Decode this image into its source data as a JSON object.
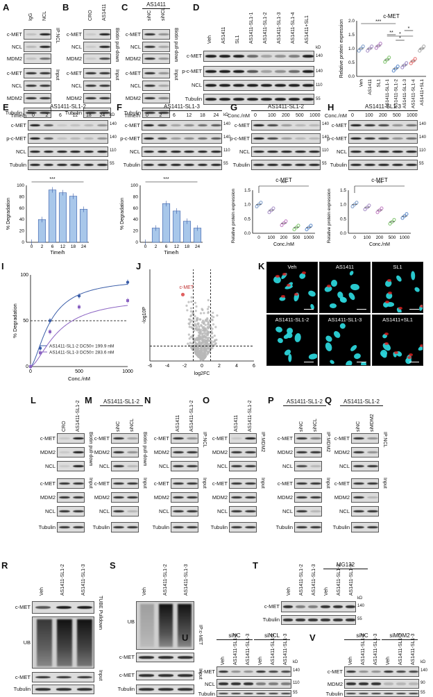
{
  "panels": {
    "A": {
      "letter": "A",
      "lanes": [
        "IgG",
        "NCL"
      ],
      "rows": [
        "c-MET",
        "NCL",
        "MDM2",
        "c-MET",
        "NCL",
        "MDM2",
        "Tubulin"
      ],
      "side": [
        "IP:NCL",
        "Input"
      ]
    },
    "B": {
      "letter": "B",
      "lanes": [
        "CRO",
        "AS1411"
      ],
      "rows": [
        "c-MET",
        "NCL",
        "MDM2",
        "c-MET",
        "NCL",
        "MDM2",
        "Tubulin"
      ],
      "side": [
        "Biotin pull-down",
        "Input"
      ]
    },
    "C": {
      "letter": "C",
      "title": "AS1411",
      "lanes": [
        "siNC",
        "siNCL"
      ],
      "rows": [
        "c-MET",
        "NCL",
        "MDM2",
        "c-MET",
        "NCL",
        "MDM2",
        "Tubulin"
      ],
      "side": [
        "Biotin pull-down",
        "Input"
      ]
    },
    "D": {
      "letter": "D",
      "lanes": [
        "Veh",
        "AS1411",
        "SL1",
        "AS1411-SL1-1",
        "AS1411-SL1-2",
        "AS1411-SL1-3",
        "AS1411-SL1-4",
        "AS1411+SL1"
      ],
      "rows": [
        "c-MET",
        "p-c-MET",
        "NCL",
        "Tubulin"
      ],
      "kd": [
        "kD",
        "140",
        "140",
        "110",
        "55"
      ]
    },
    "E": {
      "letter": "E",
      "title": "AS1411-SL1-2",
      "rowhead": "Time/h",
      "lanes": [
        "0",
        "2",
        "6",
        "12",
        "18",
        "24"
      ],
      "rows": [
        "c-MET",
        "p-c-MET",
        "NCL",
        "Tubulin"
      ],
      "kd": [
        "kD",
        "140",
        "140",
        "110",
        "55"
      ]
    },
    "F": {
      "letter": "F",
      "title": "AS1411-SL1-3",
      "rowhead": "Time/h",
      "lanes": [
        "0",
        "2",
        "6",
        "12",
        "18",
        "24"
      ],
      "rows": [
        "c-MET",
        "p-c-MET",
        "NCL",
        "Tubulin"
      ],
      "kd": [
        "kD",
        "140",
        "140",
        "110",
        "55"
      ]
    },
    "G": {
      "letter": "G",
      "title": "AS1411-SL1-2",
      "rowhead": "Conc./nM",
      "lanes": [
        "0",
        "100",
        "200",
        "500",
        "1000"
      ],
      "rows": [
        "c-MET",
        "p-c-MET",
        "NCL",
        "Tubulin"
      ],
      "kd": [
        "140",
        "140",
        "110",
        "55"
      ]
    },
    "H": {
      "letter": "H",
      "title": "AS1411-SL1-3",
      "rowhead": "Conc./nM",
      "lanes": [
        "0",
        "100",
        "200",
        "500",
        "1000"
      ],
      "rows": [
        "c-MET",
        "p-c-MET",
        "NCL",
        "Tubulin"
      ],
      "kd": [
        "140",
        "140",
        "110",
        "55"
      ]
    },
    "I": {
      "letter": "I"
    },
    "J": {
      "letter": "J"
    },
    "K": {
      "letter": "K",
      "labels": [
        "Veh",
        "AS1411",
        "SL1",
        "AS1411-SL1-2",
        "AS1411-SL1-3",
        "AS1411+SL1"
      ]
    },
    "L": {
      "letter": "L",
      "lanes": [
        "CRO",
        "AS1411-SL1-2"
      ],
      "rows": [
        "c-MET",
        "MDM2",
        "NCL",
        "c-MET",
        "MDM2",
        "NCL",
        "Tubulin"
      ],
      "side": [
        "Biotin pull-down",
        "Input"
      ]
    },
    "M": {
      "letter": "M",
      "title": "AS1411-SL1-2",
      "lanes": [
        "siNC",
        "siNCL"
      ],
      "rows": [
        "c-MET",
        "MDM2",
        "NCL",
        "c-MET",
        "MDM2",
        "NCL",
        "Tubulin"
      ],
      "side": [
        "Biotin pull-down",
        "Input"
      ]
    },
    "N": {
      "letter": "N",
      "lanes": [
        "AS1411",
        "AS1411-SL1-2"
      ],
      "rows": [
        "c-MET",
        "MDM2",
        "NCL",
        "c-MET",
        "MDM2",
        "NCL",
        "Tubulin"
      ],
      "side": [
        "IP:NCL",
        "Input"
      ]
    },
    "O": {
      "letter": "O",
      "lanes": [
        "AS1411",
        "AS1411-SL1-2"
      ],
      "rows": [
        "c-MET",
        "MDM2",
        "NCL",
        "c-MET",
        "MDM2",
        "NCL",
        "Tubulin"
      ],
      "side": [
        "IP:MDM2",
        "Input"
      ]
    },
    "P": {
      "letter": "P",
      "title": "AS1411-SL1-2",
      "lanes": [
        "siNC",
        "siNCL"
      ],
      "rows": [
        "c-MET",
        "MDM2",
        "NCL",
        "c-MET",
        "MDM2",
        "NCL",
        "Tubulin"
      ],
      "side": [
        "IP:MDM2",
        "Input"
      ]
    },
    "Q": {
      "letter": "Q",
      "title": "AS1411-SL1-2",
      "lanes": [
        "siNC",
        "siMDM2"
      ],
      "rows": [
        "c-MET",
        "MDM2",
        "NCL",
        "c-MET",
        "MDM2",
        "NCL",
        "Tubulin"
      ],
      "side": [
        "IP:NCL",
        "Input"
      ]
    },
    "R": {
      "letter": "R",
      "lanes": [
        "Veh",
        "AS1411-SL1-2",
        "AS1411-SL1-3"
      ],
      "rows": [
        "c-MET",
        "UB",
        "c-MET",
        "Tubulin"
      ],
      "side": [
        "TUBE Pulldown",
        "Input"
      ]
    },
    "S": {
      "letter": "S",
      "lanes": [
        "Veh",
        "AS1411-SL1-2",
        "AS1411-SL1-3"
      ],
      "rows": [
        "UB",
        "c-MET",
        "c-MET",
        "Tubulin"
      ],
      "side": [
        "IP:c-MET",
        "Input"
      ]
    },
    "T": {
      "letter": "T",
      "title": "MG132",
      "lanes": [
        "Veh",
        "AS1411-SL1-2",
        "AS1411-SL1-3",
        "Veh",
        "AS1411-SL1-2",
        "AS1411-SL1-3"
      ],
      "rows": [
        "c-MET",
        "Tubulin"
      ],
      "kd": [
        "kD",
        "140",
        "55"
      ]
    },
    "U": {
      "letter": "U",
      "groups": [
        "siNC",
        "siNCL"
      ],
      "lanes": [
        "Veh",
        "AS1411-SL1-2",
        "AS1411-SL1-3",
        "Veh",
        "AS1411-SL1-2",
        "AS1411-SL1-3"
      ],
      "rows": [
        "c-MET",
        "NCL",
        "Tubulin"
      ],
      "kd": [
        "kD",
        "140",
        "110",
        "55"
      ]
    },
    "V": {
      "letter": "V",
      "groups": [
        "siNC",
        "siMDM2"
      ],
      "lanes": [
        "Veh",
        "AS1411-SL1-2",
        "AS1411-SL1-3",
        "Veh",
        "AS1411-SL1-2",
        "AS1411-SL1-3"
      ],
      "rows": [
        "c-MET",
        "MDM2",
        "Tubulin"
      ],
      "kd": [
        "kD",
        "140",
        "90",
        "55"
      ]
    }
  },
  "chart_data": [
    {
      "id": "D",
      "type": "scatter",
      "title": "c-MET",
      "ylabel": "Relative protein expression",
      "ylim": [
        0,
        2.0
      ],
      "yticks": [
        "0.0",
        "0.5",
        "1.0",
        "1.5",
        "2.0"
      ],
      "categories": [
        "Veh",
        "AS1411",
        "SL1",
        "AS1411-SL1-1",
        "AS1411-SL1-2",
        "AS1411-SL1-3",
        "AS1411-SL1-4",
        "AS1411+SL1"
      ],
      "values": [
        1.0,
        1.0,
        1.1,
        0.6,
        0.28,
        0.4,
        0.55,
        1.0
      ],
      "colors": [
        "#7c9cc9",
        "#a78fc7",
        "#b07bc1",
        "#7dc36b",
        "#5b89c9",
        "#9a86c4",
        "#e36b6b",
        "#a9a9a9"
      ],
      "sig": [
        "***",
        "**",
        "*",
        "*",
        "*"
      ]
    },
    {
      "id": "E",
      "type": "bar",
      "ylabel": "% Degradation",
      "xlabel": "Time/h",
      "categories": [
        "0",
        "2",
        "6",
        "12",
        "18",
        "24"
      ],
      "values": [
        0,
        40,
        92,
        87,
        81,
        58
      ],
      "ylim": [
        0,
        100
      ],
      "yticks": [
        "0",
        "20",
        "40",
        "60",
        "80",
        "100"
      ],
      "sig": "***",
      "color": "#a8c7ea"
    },
    {
      "id": "F",
      "type": "bar",
      "ylabel": "% Degradation",
      "xlabel": "Time/h",
      "categories": [
        "0",
        "2",
        "6",
        "12",
        "18",
        "24"
      ],
      "values": [
        0,
        25,
        68,
        55,
        37,
        25
      ],
      "ylim": [
        0,
        100
      ],
      "yticks": [
        "0",
        "20",
        "40",
        "60",
        "80",
        "100"
      ],
      "sig": "***",
      "color": "#a8c7ea"
    },
    {
      "id": "G",
      "type": "scatter",
      "title": "c-MET",
      "ylabel": "Relative protein expression",
      "xlabel": "Conc./nM",
      "categories": [
        "0",
        "100",
        "200",
        "500",
        "1000"
      ],
      "values": [
        1.0,
        0.8,
        0.35,
        0.2,
        0.2
      ],
      "ylim": [
        0,
        1.5
      ],
      "yticks": [
        "0.0",
        "0.5",
        "1.0",
        "1.5"
      ],
      "sig": "***",
      "colors": [
        "#7c9cc9",
        "#a78fc7",
        "#c07bc1",
        "#7dc36b",
        "#5b89c9"
      ]
    },
    {
      "id": "H",
      "type": "scatter",
      "title": "c-MET",
      "ylabel": "Relative protein expression",
      "xlabel": "Conc./nM",
      "categories": [
        "0",
        "100",
        "200",
        "500",
        "1000"
      ],
      "values": [
        1.0,
        0.9,
        0.8,
        0.4,
        0.6
      ],
      "ylim": [
        0,
        1.5
      ],
      "yticks": [
        "0.0",
        "0.5",
        "1.0",
        "1.5"
      ],
      "sig": "***",
      "colors": [
        "#7c9cc9",
        "#a78fc7",
        "#c07bc1",
        "#7dc36b",
        "#5b89c9"
      ]
    },
    {
      "id": "I",
      "type": "line",
      "ylabel": "% Degradation",
      "xlabel": "Conc./nM",
      "xlim": [
        0,
        1000
      ],
      "ylim": [
        0,
        100
      ],
      "yticks": [
        "0",
        "50",
        "100"
      ],
      "xticks": [
        "0",
        "500",
        "1000"
      ],
      "xtickvals": [
        0,
        500,
        1000
      ],
      "series": [
        {
          "name": "AS1411-SL1-2 DC50= 199.9 nM",
          "x": [
            0,
            100,
            200,
            500,
            1000
          ],
          "y": [
            0,
            20,
            50,
            77,
            92
          ],
          "color": "#3a5da8"
        },
        {
          "name": "AS1411-SL1-3 DC50= 283.6 nM",
          "x": [
            0,
            100,
            200,
            500,
            1000
          ],
          "y": [
            0,
            15,
            38,
            65,
            72
          ],
          "color": "#8a62c2"
        }
      ]
    },
    {
      "id": "J",
      "type": "scatter",
      "xlabel": "log2FC",
      "ylabel": "-log10P",
      "xticks": [
        "-6",
        "-4",
        "-2",
        "0",
        "2",
        "4",
        "6"
      ],
      "annotation": "c-MET"
    }
  ]
}
